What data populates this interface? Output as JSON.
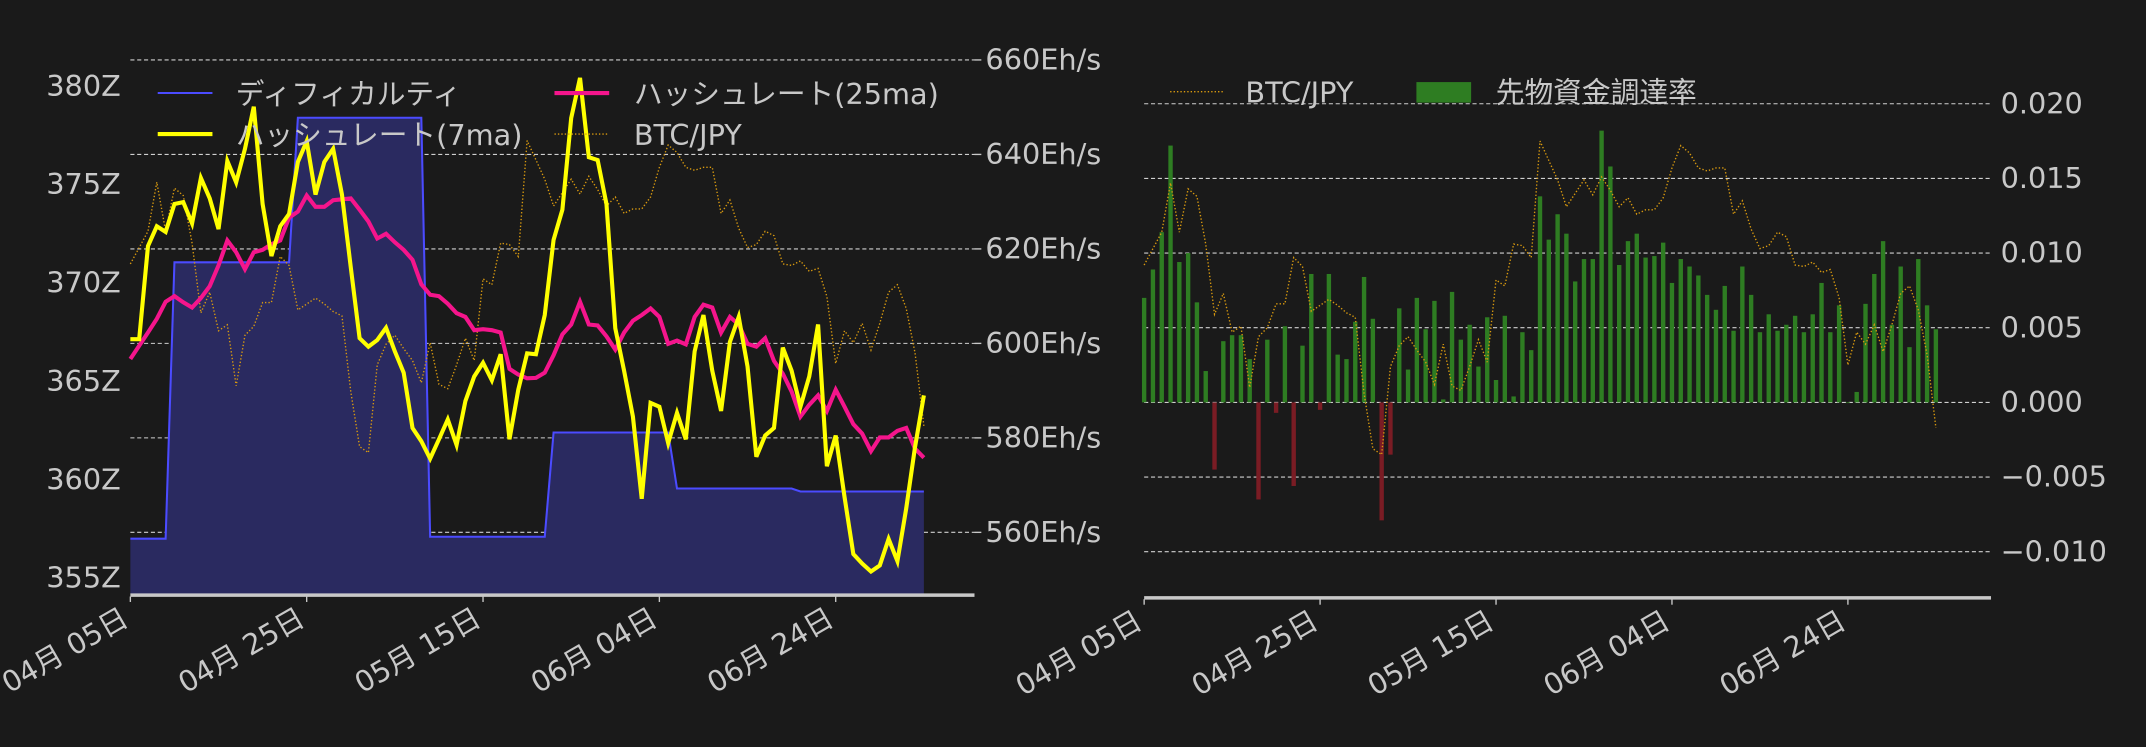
{
  "colors": {
    "background": "#1a1a1a",
    "difficulty_line": "#4b4bff",
    "difficulty_fill": "#2a2a60",
    "hashrate_7ma": "#ffff00",
    "hashrate_25ma": "#f5158c",
    "btc_jpy": "#d99a0f",
    "funding_positive": "#2e7d22",
    "funding_negative": "#7a1c24",
    "text": "#c8c8c8",
    "grid": "#d0d0d0"
  },
  "dates": [
    "04-05",
    "04-06",
    "04-07",
    "04-08",
    "04-09",
    "04-10",
    "04-11",
    "04-12",
    "04-13",
    "04-14",
    "04-15",
    "04-16",
    "04-17",
    "04-18",
    "04-19",
    "04-20",
    "04-21",
    "04-22",
    "04-23",
    "04-24",
    "04-25",
    "04-26",
    "04-27",
    "04-28",
    "04-29",
    "04-30",
    "05-01",
    "05-02",
    "05-03",
    "05-04",
    "05-05",
    "05-06",
    "05-07",
    "05-08",
    "05-09",
    "05-10",
    "05-11",
    "05-12",
    "05-13",
    "05-14",
    "05-15",
    "05-16",
    "05-17",
    "05-18",
    "05-19",
    "05-20",
    "05-21",
    "05-22",
    "05-23",
    "05-24",
    "05-25",
    "05-26",
    "05-27",
    "05-28",
    "05-29",
    "05-30",
    "05-31",
    "06-01",
    "06-02",
    "06-03",
    "06-04",
    "06-05",
    "06-06",
    "06-07",
    "06-08",
    "06-09",
    "06-10",
    "06-11",
    "06-12",
    "06-13",
    "06-14",
    "06-15",
    "06-16",
    "06-17",
    "06-18",
    "06-19",
    "06-20",
    "06-21",
    "06-22",
    "06-23",
    "06-24",
    "06-25",
    "06-26",
    "06-27",
    "06-28",
    "06-29",
    "06-30",
    "07-01",
    "07-02",
    "07-03",
    "07-04"
  ],
  "btc_jpy": [
    10220000,
    10330000,
    10440000,
    10770000,
    10440000,
    10730000,
    10680000,
    10360000,
    9890000,
    10030000,
    9770000,
    9810000,
    9400000,
    9740000,
    9800000,
    9960000,
    9960000,
    10270000,
    10210000,
    9910000,
    9950000,
    9990000,
    9950000,
    9900000,
    9870000,
    9360000,
    8990000,
    8950000,
    9540000,
    9680000,
    9740000,
    9650000,
    9570000,
    9420000,
    9690000,
    9410000,
    9380000,
    9540000,
    9720000,
    9570000,
    10120000,
    10080000,
    10360000,
    10350000,
    10270000,
    11050000,
    10920000,
    10790000,
    10610000,
    10700000,
    10790000,
    10690000,
    10810000,
    10720000,
    10610000,
    10670000,
    10560000,
    10590000,
    10590000,
    10670000,
    10870000,
    11020000,
    10970000,
    10870000,
    10850000,
    10870000,
    10870000,
    10560000,
    10650000,
    10460000,
    10330000,
    10350000,
    10440000,
    10410000,
    10220000,
    10210000,
    10240000,
    10170000,
    10190000,
    10000000,
    9550000,
    9770000,
    9690000,
    9820000,
    9640000,
    9820000,
    10030000,
    10080000,
    9920000,
    9620000,
    9130000
  ],
  "chart_data": [
    {
      "type": "line",
      "x_tick_labels": [
        "04月 05日",
        "04月 25日",
        "05月 15日",
        "06月 04日",
        "06月 24日"
      ],
      "x_tick_dates": [
        "04-05",
        "04-25",
        "05-15",
        "06-04",
        "06-24"
      ],
      "y_left": {
        "ticks": [
          355,
          360,
          365,
          370,
          375,
          380
        ],
        "tick_labels": [
          "355Z",
          "360Z",
          "365Z",
          "370Z",
          "375Z",
          "380Z"
        ],
        "ylim": [
          354.2,
          382.3
        ]
      },
      "y_right": {
        "ticks": [
          560,
          580,
          600,
          620,
          640,
          660
        ],
        "tick_labels": [
          "560Eh/s",
          "580Eh/s",
          "600Eh/s",
          "620Eh/s",
          "640Eh/s",
          "660Eh/s"
        ],
        "ylim": [
          547,
          664
        ]
      },
      "y_hidden_btc": {
        "ylim": [
          8000000,
          11720000
        ]
      },
      "grid": "horizontal dashed (right axis)",
      "legend": {
        "placement": "top-left",
        "entries": [
          "ディフィカルティ",
          "ハッシュレート(25ma)",
          "ハッシュレート(7ma)",
          "BTC/JPY"
        ]
      },
      "series": [
        {
          "name": "ディフィカルティ",
          "axis": "left",
          "style": "step-filled",
          "values": [
            357.0,
            357.0,
            357.0,
            357.0,
            357.0,
            371.05,
            371.05,
            371.05,
            371.05,
            371.05,
            371.05,
            371.05,
            371.05,
            371.05,
            371.05,
            371.05,
            371.05,
            371.05,
            371.05,
            378.4,
            378.4,
            378.4,
            378.4,
            378.4,
            378.4,
            378.4,
            378.4,
            378.4,
            378.4,
            378.4,
            378.4,
            378.4,
            378.4,
            378.4,
            357.1,
            357.1,
            357.1,
            357.1,
            357.1,
            357.1,
            357.1,
            357.1,
            357.1,
            357.1,
            357.1,
            357.1,
            357.1,
            357.1,
            362.4,
            362.4,
            362.4,
            362.4,
            362.4,
            362.4,
            362.4,
            362.4,
            362.4,
            362.4,
            362.4,
            362.4,
            362.4,
            362.4,
            359.55,
            359.55,
            359.55,
            359.55,
            359.55,
            359.55,
            359.55,
            359.55,
            359.55,
            359.55,
            359.55,
            359.55,
            359.55,
            359.55,
            359.4,
            359.4,
            359.4,
            359.4,
            359.4,
            359.4,
            359.4,
            359.4,
            359.4,
            359.4,
            359.4,
            359.4,
            359.4,
            359.4,
            359.4
          ]
        },
        {
          "name": "ハッシュレート(25ma)",
          "axis": "right",
          "values": [
            596.7,
            599.5,
            602.3,
            605.2,
            608.8,
            610.0,
            608.7,
            607.6,
            609.6,
            612.1,
            616.5,
            621.8,
            619.3,
            615.7,
            619.3,
            619.8,
            621.0,
            621.8,
            626.6,
            627.9,
            631.3,
            628.9,
            628.9,
            630.3,
            630.5,
            630.7,
            628.3,
            625.8,
            622.2,
            623.2,
            621.4,
            619.8,
            617.7,
            612.5,
            610.3,
            610.0,
            608.4,
            606.4,
            605.6,
            602.8,
            603.0,
            602.8,
            602.3,
            594.6,
            593.4,
            592.6,
            592.7,
            593.8,
            597.5,
            601.9,
            604.0,
            608.8,
            604.0,
            603.8,
            601.5,
            598.7,
            602.3,
            604.8,
            606.0,
            607.4,
            605.6,
            599.9,
            600.6,
            599.8,
            605.6,
            608.2,
            607.6,
            602.3,
            605.6,
            604.0,
            599.9,
            599.3,
            601.1,
            596.3,
            593.6,
            589.8,
            584.5,
            587.0,
            589.0,
            585.7,
            590.2,
            586.6,
            582.9,
            580.9,
            577.2,
            580.1,
            580.1,
            581.5,
            582.1,
            577.7,
            575.8
          ]
        },
        {
          "name": "ハッシュレート(7ma)",
          "axis": "right",
          "values": [
            600.9,
            600.9,
            620.6,
            624.8,
            623.6,
            629.5,
            629.9,
            625.4,
            635.0,
            630.7,
            624.2,
            638.6,
            634.1,
            641.2,
            650.1,
            629.5,
            618.5,
            624.8,
            627.4,
            638.4,
            642.8,
            631.5,
            638.4,
            641.2,
            631.5,
            616.1,
            601.1,
            599.3,
            600.7,
            603.3,
            598.3,
            593.8,
            582.1,
            579.3,
            575.6,
            579.7,
            583.9,
            578.5,
            587.8,
            593.0,
            595.9,
            592.2,
            597.7,
            579.7,
            590.2,
            597.9,
            597.7,
            606.0,
            621.9,
            628.3,
            647.7,
            656.2,
            639.4,
            638.8,
            629.5,
            603.2,
            594.2,
            584.5,
            567.1,
            587.4,
            586.6,
            578.9,
            585.3,
            579.7,
            598.3,
            606.0,
            594.2,
            585.7,
            600.3,
            605.6,
            595.1,
            576.0,
            580.5,
            582.1,
            599.1,
            594.2,
            586.6,
            593.0,
            604.0,
            574.0,
            580.5,
            567.5,
            555.4,
            553.4,
            551.7,
            553.0,
            558.6,
            553.9,
            565.1,
            578.1,
            589.0
          ]
        },
        {
          "name": "BTC/JPY",
          "axis": "hidden",
          "style": "dotted",
          "values_ref": "btc_jpy"
        }
      ]
    },
    {
      "type": "bar",
      "x_tick_labels": [
        "04月 05日",
        "04月 25日",
        "05月 15日",
        "06月 04日",
        "06月 24日"
      ],
      "x_tick_dates": [
        "04-05",
        "04-25",
        "05-15",
        "06-04",
        "06-24"
      ],
      "y_right": {
        "ticks": [
          -0.01,
          -0.005,
          0.0,
          0.005,
          0.01,
          0.015,
          0.02
        ],
        "tick_labels": [
          "−0.010",
          "−0.005",
          "0.000",
          "0.005",
          "0.010",
          "0.015",
          "0.020"
        ],
        "ylim": [
          -0.013,
          0.0242
        ]
      },
      "y_hidden_btc": {
        "ylim": [
          8000000,
          11720000
        ]
      },
      "grid": "horizontal dashed",
      "legend": {
        "placement": "top-left",
        "entries": [
          "BTC/JPY",
          "先物資金調達率"
        ]
      },
      "series": [
        {
          "name": "BTC/JPY",
          "type": "line",
          "style": "dotted",
          "axis": "hidden",
          "values_ref": "btc_jpy"
        },
        {
          "name": "先物資金調達率",
          "type": "bar",
          "axis": "right",
          "values": [
            0.007,
            0.0089,
            0.0114,
            0.0172,
            0.0094,
            0.01,
            0.0067,
            0.0021,
            -0.0045,
            0.0041,
            0.0045,
            0.0045,
            0.0029,
            -0.0065,
            0.0042,
            -0.0007,
            0.0051,
            -0.0056,
            0.0038,
            0.0086,
            -0.0005,
            0.0086,
            0.0032,
            0.0029,
            0.0054,
            0.0084,
            0.0056,
            -0.0079,
            -0.0035,
            0.0063,
            0.0022,
            0.007,
            0.0049,
            0.0068,
            0.0002,
            0.0074,
            0.0042,
            0.0052,
            0.0024,
            0.0057,
            0.0015,
            0.0058,
            0.0004,
            0.0047,
            0.0035,
            0.0138,
            0.0109,
            0.0126,
            0.0113,
            0.0081,
            0.0096,
            0.0096,
            0.0182,
            0.0158,
            0.0092,
            0.0108,
            0.0113,
            0.0097,
            0.0098,
            0.0107,
            0.008,
            0.0096,
            0.0091,
            0.0085,
            0.0072,
            0.0062,
            0.0078,
            0.0048,
            0.0091,
            0.0072,
            0.0047,
            0.0059,
            0.0048,
            0.0052,
            0.0058,
            0.0047,
            0.0059,
            0.008,
            0.0047,
            0.0065,
            0.0,
            0.0007,
            0.0066,
            0.0086,
            0.0108,
            0.0052,
            0.0091,
            0.0037,
            0.0096,
            0.0065,
            0.0049
          ]
        }
      ]
    }
  ]
}
